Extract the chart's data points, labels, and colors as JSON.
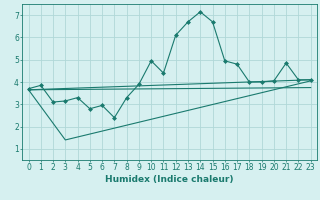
{
  "xlabel": "Humidex (Indice chaleur)",
  "bg_color": "#d6f0f0",
  "grid_color": "#b0d8d8",
  "line_color": "#1a7a6e",
  "xlim": [
    -0.5,
    23.5
  ],
  "ylim": [
    0.5,
    7.5
  ],
  "x_ticks": [
    0,
    1,
    2,
    3,
    4,
    5,
    6,
    7,
    8,
    9,
    10,
    11,
    12,
    13,
    14,
    15,
    16,
    17,
    18,
    19,
    20,
    21,
    22,
    23
  ],
  "y_ticks": [
    1,
    2,
    3,
    4,
    5,
    6,
    7
  ],
  "line1_x": [
    0,
    1,
    2,
    3,
    4,
    5,
    6,
    7,
    8,
    9,
    10,
    11,
    12,
    13,
    14,
    15,
    16,
    17,
    18,
    19,
    20,
    21,
    22,
    23
  ],
  "line1_y": [
    3.7,
    3.85,
    3.1,
    3.15,
    3.3,
    2.8,
    2.95,
    2.4,
    3.3,
    3.9,
    4.95,
    4.4,
    6.1,
    6.7,
    7.15,
    6.7,
    4.95,
    4.8,
    4.0,
    4.0,
    4.05,
    4.85,
    4.1,
    4.1
  ],
  "line2_x": [
    0,
    23
  ],
  "line2_y": [
    3.65,
    4.1
  ],
  "line3_x": [
    0,
    3,
    23
  ],
  "line3_y": [
    3.65,
    1.4,
    4.05
  ],
  "line4_x": [
    0,
    23
  ],
  "line4_y": [
    3.65,
    3.75
  ],
  "tick_fontsize": 5.5,
  "xlabel_fontsize": 6.5
}
